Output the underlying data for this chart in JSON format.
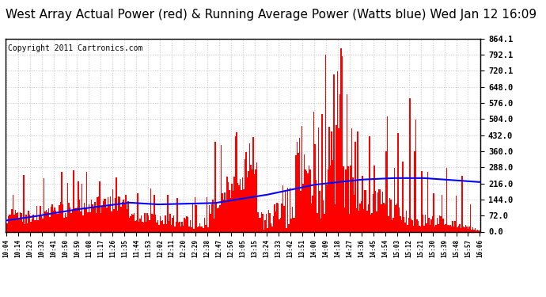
{
  "title": "West Array Actual Power (red) & Running Average Power (Watts blue) Wed Jan 12 16:09",
  "copyright": "Copyright 2011 Cartronics.com",
  "yticks": [
    864.1,
    792.1,
    720.1,
    648.0,
    576.0,
    504.0,
    432.0,
    360.0,
    288.0,
    216.0,
    144.0,
    72.0,
    0.0
  ],
  "ylim": [
    0.0,
    864.1
  ],
  "bar_color": "#FF0000",
  "line_color": "#0000FF",
  "background_color": "#FFFFFF",
  "grid_color": "#C8C8C8",
  "title_fontsize": 11,
  "copyright_fontsize": 7,
  "tick_labels": [
    "10:04",
    "10:14",
    "10:23",
    "10:32",
    "10:41",
    "10:50",
    "10:59",
    "11:08",
    "11:17",
    "11:26",
    "11:35",
    "11:44",
    "11:53",
    "12:02",
    "12:11",
    "12:20",
    "12:29",
    "12:38",
    "12:47",
    "12:56",
    "13:05",
    "13:15",
    "13:24",
    "13:33",
    "13:42",
    "13:51",
    "14:00",
    "14:09",
    "14:18",
    "14:27",
    "14:36",
    "14:45",
    "14:54",
    "15:03",
    "15:12",
    "15:21",
    "15:30",
    "15:39",
    "15:48",
    "15:57",
    "16:06"
  ],
  "num_bars": 400
}
